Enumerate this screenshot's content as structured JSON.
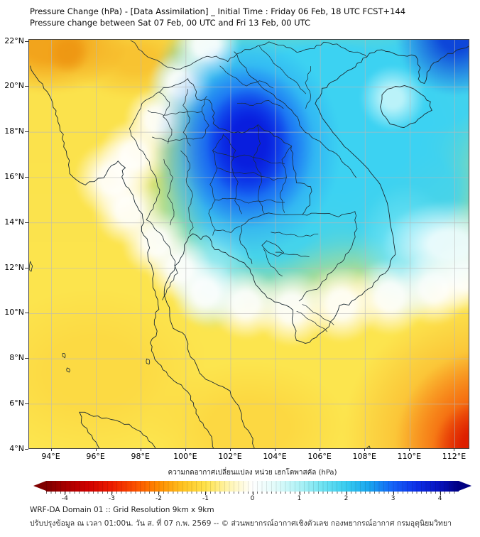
{
  "header": {
    "title_line1": "Pressure Change (hPa) - [Data Assimilation] _ Initial Time : Friday 06 Feb, 18 UTC FCST+144",
    "title_line2": "Pressure change between Sat 07 Feb, 00 UTC and Fri 13 Feb, 00 UTC"
  },
  "map": {
    "lat_labels": [
      "22°N",
      "20°N",
      "18°N",
      "16°N",
      "14°N",
      "12°N",
      "10°N",
      "8°N",
      "6°N",
      "4°N"
    ],
    "lon_labels": [
      "94°E",
      "96°E",
      "98°E",
      "100°E",
      "102°E",
      "104°E",
      "106°E",
      "108°E",
      "110°E",
      "112°E"
    ],
    "field_name": "Pressure change (hPa)",
    "palette": {
      "strong_fall": "#800000",
      "fall": "#ee1c00",
      "neutral": "#ffffff",
      "rise": "#38ccf0",
      "strong_rise": "#000082"
    }
  },
  "colorbar": {
    "title": "ความกดอากาศเปลี่ยนแปลง หน่วย เฮกโตพาสคัล (hPa)",
    "tick_labels": [
      "-4",
      "-3",
      "-2",
      "-1",
      "0",
      "1",
      "2",
      "3",
      "4"
    ],
    "range_min": -4.4,
    "range_max": 4.4
  },
  "footer": {
    "line1": "WRF-DA Domain 01 :: Grid Resolution 9km x 9km",
    "line2": "ปรับปรุงข้อมูล ณ เวลา 01:00น. วัน ส. ที่ 07 ก.พ. 2569 -- © ส่วนพยากรณ์อากาศเชิงตัวเลข กองพยากรณ์อากาศ กรมอุตุนิยมวิทยา"
  }
}
